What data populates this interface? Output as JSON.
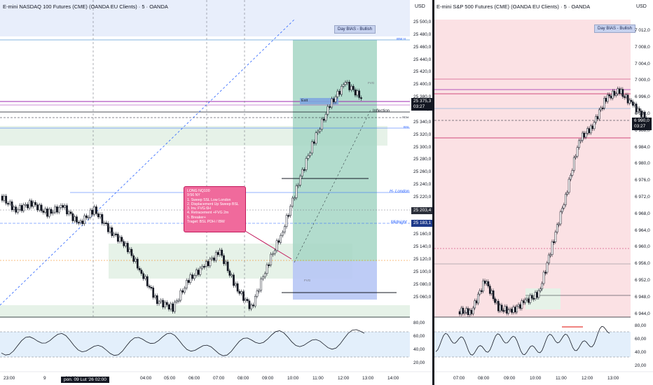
{
  "left_chart": {
    "title": "E-mini NASDAQ 100 Futures (CME) (OANDA EU Clients) · 5 · OANDA",
    "currency": "USD",
    "bias_label": "Day BIAS - Bullish",
    "price_axis": [
      "25 500,0",
      "25 480,0",
      "25 460,0",
      "25 440,0",
      "25 420,0",
      "25 400,0",
      "25 380,0",
      "25 360,0",
      "25 340,0",
      "25 320,0",
      "25 300,0",
      "25 280,0",
      "25 260,0",
      "25 240,0",
      "25 220,0",
      "25 200,0",
      "25 180,0",
      "25 160,0",
      "25 140,0",
      "25 120,0",
      "25 100,0",
      "25 080,0",
      "25 060,0"
    ],
    "last_price": "25 375,3",
    "countdown": "03:27",
    "price_tag_2": "25 203,4",
    "price_tag_3": "25 183,1",
    "lines": {
      "inflection": "Inflection",
      "h_london": "H- London",
      "midnight": "Midnight",
      "exit": "Exit",
      "bsl": "BSL",
      "pdh": "PDH",
      "ibw": "IBW H",
      "fvg": "FVG"
    },
    "trade_note": [
      "LONG NQ100",
      "9:56 NY",
      "1. Sweep SSL Low London",
      "2. Displacement Up Sweep BSL",
      "3. Inv. FVG 6H",
      "4. Retracement +FVG 2m",
      "5. Breaker+",
      "Traget: BSL PDH / IBW"
    ],
    "oscillator_axis": [
      "80,00",
      "60,00",
      "40,00",
      "20,00"
    ],
    "time_axis": [
      "23:00",
      "9",
      "01:00",
      "04:00",
      "05:00",
      "06:00",
      "07:00",
      "08:00",
      "09:00",
      "10:00",
      "11:00",
      "12:00",
      "13:00",
      "14:00"
    ],
    "time_badge": "pon. 09 Lut '26   02:00"
  },
  "right_chart": {
    "title": "E-mini S&P 500 Futures (CME) (OANDA EU Clients) · 5 · OANDA",
    "currency": "USD",
    "bias_label": "Day BIAS - Bullish",
    "price_axis": [
      "7 012,0",
      "7 008,0",
      "7 004,0",
      "7 000,0",
      "6 996,0",
      "6 992,0",
      "6 988,0",
      "6 984,0",
      "6 980,0",
      "6 976,0",
      "6 972,0",
      "6 968,0",
      "6 964,0",
      "6 960,0",
      "6 956,0",
      "6 952,0",
      "6 948,0",
      "6 944,0"
    ],
    "last_price": "6 990,0",
    "countdown": "03:27",
    "oscillator_axis": [
      "80,00",
      "60,00",
      "40,00",
      "20,00"
    ],
    "time_axis": [
      "07:00",
      "08:00",
      "09:00",
      "10:00",
      "11:00",
      "12:00",
      "13:00"
    ]
  },
  "colors": {
    "green_zone": "#a5d6b7",
    "blue_zone": "#9fb7f5",
    "red_zone": "#f7b5bd",
    "bull_candle": "#ffffff",
    "bear_candle": "#131722",
    "note_bg": "#f06a9c"
  }
}
